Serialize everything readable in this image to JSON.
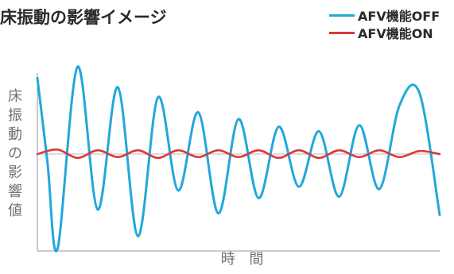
{
  "chart_data": {
    "type": "line",
    "title": "床振動の影響イメージ",
    "xlabel": "時 間",
    "ylabel": "床振動の影響値",
    "legend_position": "top-right",
    "grid": false,
    "ylim": [
      -1.1,
      1.1
    ],
    "xlim": [
      0,
      100
    ],
    "series": [
      {
        "name": "AFV機能OFF",
        "color": "#22a7dc",
        "x": [
          0,
          2.5,
          5,
          10,
          15,
          20,
          25,
          30,
          35,
          40,
          45,
          50,
          55,
          60,
          65,
          70,
          75,
          80,
          85,
          90,
          95,
          100
        ],
        "y": [
          1.0,
          -0.1,
          -1.25,
          1.15,
          -0.73,
          0.88,
          -1.08,
          0.75,
          -0.48,
          0.55,
          -0.78,
          0.46,
          -0.58,
          0.36,
          -0.43,
          0.3,
          -0.56,
          0.38,
          -0.46,
          0.64,
          0.8,
          -0.8
        ]
      },
      {
        "name": "AFV機能ON",
        "color": "#d63a3c",
        "x": [
          0,
          5,
          10,
          15,
          20,
          25,
          30,
          35,
          40,
          45,
          50,
          55,
          60,
          65,
          70,
          75,
          80,
          85,
          90,
          95,
          100
        ],
        "y": [
          0.0,
          0.06,
          -0.05,
          0.05,
          -0.04,
          0.05,
          -0.05,
          0.05,
          -0.04,
          0.05,
          -0.04,
          0.05,
          -0.05,
          0.05,
          -0.05,
          0.05,
          -0.04,
          0.05,
          -0.04,
          0.04,
          0.0
        ]
      }
    ]
  }
}
